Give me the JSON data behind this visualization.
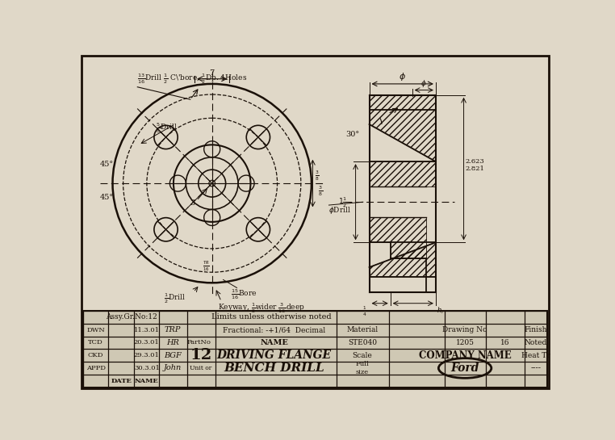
{
  "bg_color": "#e0d8c8",
  "line_color": "#1a1008",
  "title_block": {
    "assy_gr_no": "Assy.Gr.No:12",
    "limits": "Limits unless otherwise noted",
    "dwn": "DWN",
    "dwn_date": "11.3.01",
    "dwn_name": "TRP",
    "fractional": "Fractional: -+1/64  Decimal",
    "material_label": "Material",
    "drawing_no_label": "Drawing No",
    "finish_label": "Finish",
    "tcd": "TCD",
    "tcd_date": "20.3.01",
    "tcd_name": "HR",
    "part_no_label": "PartNo",
    "part_name": "NAME",
    "material_val": "STE040",
    "drawing_no_val": "1205",
    "drawing_rev": "16",
    "finish_val": "Noted",
    "ckd": "CKD",
    "ckd_date": "29.3.01",
    "ckd_name": "BGF",
    "part_num": "12",
    "part_desc1": "DRIVING FLANGE",
    "scale_label": "Scale",
    "company_name": "COMPANY NAME",
    "heat_tr": "Heat Tr",
    "appd": "APPD",
    "appd_date": "30.3.01",
    "appd_name": "John",
    "unit_or": "Unit or",
    "part_desc2": "BENCH DRILL",
    "scale_val": "Full\nsize",
    "ford_logo": "Ford",
    "dashes": "----",
    "date_label": "DATE",
    "name_label": "NAME"
  }
}
